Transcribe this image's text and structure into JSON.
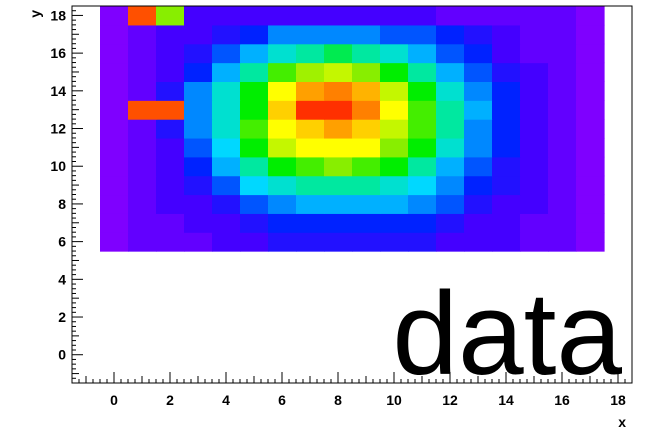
{
  "chart_data": {
    "type": "heatmap",
    "title": "",
    "overlay_text": "data",
    "xlabel": "x",
    "ylabel": "y",
    "xlim": [
      -1.5,
      18.5
    ],
    "ylim": [
      -1.5,
      18.5
    ],
    "x_ticks": [
      0,
      2,
      4,
      6,
      8,
      10,
      12,
      14,
      16,
      18
    ],
    "y_ticks": [
      0,
      2,
      4,
      6,
      8,
      10,
      12,
      14,
      16,
      18
    ],
    "grid": false,
    "bin_width_x": 1,
    "bin_width_y": 1,
    "x_edges_start": -0.5,
    "y_edges_start": 5.5,
    "value_scale": "0-1 (violet low to red high)",
    "values": [
      [
        0,
        0.05,
        0.05,
        0.05,
        0.1,
        0.1,
        0.15,
        0.15,
        0.15,
        0.15,
        0.15,
        0.15,
        0.1,
        0.1,
        0.1,
        0.05,
        0.05,
        0
      ],
      [
        0,
        0.05,
        0.05,
        0.1,
        0.1,
        0.15,
        0.2,
        0.2,
        0.2,
        0.2,
        0.2,
        0.2,
        0.15,
        0.1,
        0.1,
        0.05,
        0.05,
        0
      ],
      [
        0,
        0.05,
        0.1,
        0.1,
        0.15,
        0.25,
        0.3,
        0.35,
        0.35,
        0.35,
        0.35,
        0.3,
        0.25,
        0.15,
        0.1,
        0.1,
        0.05,
        0
      ],
      [
        0,
        0.05,
        0.1,
        0.15,
        0.25,
        0.4,
        0.45,
        0.5,
        0.5,
        0.5,
        0.45,
        0.4,
        0.3,
        0.2,
        0.15,
        0.1,
        0.05,
        0
      ],
      [
        0,
        0.05,
        0.1,
        0.2,
        0.35,
        0.5,
        0.6,
        0.65,
        0.7,
        0.65,
        0.6,
        0.5,
        0.35,
        0.25,
        0.15,
        0.1,
        0.05,
        0
      ],
      [
        0,
        0.05,
        0.1,
        0.25,
        0.4,
        0.6,
        0.75,
        0.8,
        0.8,
        0.8,
        0.7,
        0.6,
        0.45,
        0.3,
        0.2,
        0.1,
        0.05,
        0
      ],
      [
        0,
        0.05,
        0.15,
        0.3,
        0.45,
        0.65,
        0.8,
        0.85,
        0.9,
        0.85,
        0.75,
        0.65,
        0.5,
        0.3,
        0.2,
        0.1,
        0.05,
        0
      ],
      [
        0,
        0.95,
        0.95,
        0.3,
        0.45,
        0.6,
        0.85,
        0.97,
        0.97,
        0.92,
        0.8,
        0.65,
        0.5,
        0.35,
        0.2,
        0.1,
        0.05,
        0
      ],
      [
        0,
        0.05,
        0.15,
        0.3,
        0.45,
        0.6,
        0.8,
        0.9,
        0.92,
        0.88,
        0.75,
        0.6,
        0.45,
        0.3,
        0.2,
        0.1,
        0.05,
        0
      ],
      [
        0,
        0.05,
        0.1,
        0.2,
        0.35,
        0.5,
        0.65,
        0.72,
        0.75,
        0.7,
        0.6,
        0.5,
        0.35,
        0.25,
        0.15,
        0.1,
        0.05,
        0
      ],
      [
        0,
        0.05,
        0.1,
        0.15,
        0.25,
        0.35,
        0.45,
        0.5,
        0.55,
        0.5,
        0.45,
        0.35,
        0.25,
        0.2,
        0.1,
        0.05,
        0.05,
        0
      ],
      [
        0,
        0.05,
        0.1,
        0.1,
        0.15,
        0.2,
        0.3,
        0.3,
        0.3,
        0.3,
        0.25,
        0.25,
        0.2,
        0.15,
        0.1,
        0.05,
        0.05,
        0
      ],
      [
        0,
        0.95,
        0.7,
        0.1,
        0.1,
        0.1,
        0.1,
        0.1,
        0.1,
        0.1,
        0.1,
        0.1,
        0.05,
        0.05,
        0.05,
        0.05,
        0.05,
        0
      ]
    ],
    "colors": {
      "axis": "#000000",
      "background": "#ffffff",
      "palette": [
        "#7f00ff",
        "#4400ff",
        "#0022ff",
        "#0088ff",
        "#00d8ff",
        "#00e8a0",
        "#00ee00",
        "#88ee00",
        "#ffff00",
        "#ffa000",
        "#ff0000"
      ]
    }
  }
}
